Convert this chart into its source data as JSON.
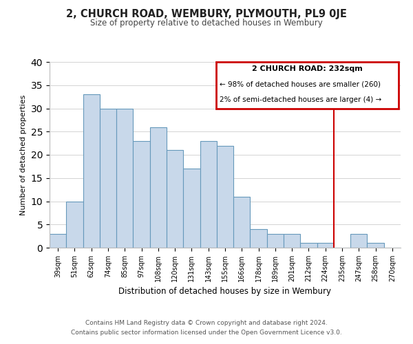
{
  "title": "2, CHURCH ROAD, WEMBURY, PLYMOUTH, PL9 0JE",
  "subtitle": "Size of property relative to detached houses in Wembury",
  "xlabel": "Distribution of detached houses by size in Wembury",
  "ylabel": "Number of detached properties",
  "footer_line1": "Contains HM Land Registry data © Crown copyright and database right 2024.",
  "footer_line2": "Contains public sector information licensed under the Open Government Licence v3.0.",
  "bar_labels": [
    "39sqm",
    "51sqm",
    "62sqm",
    "74sqm",
    "85sqm",
    "97sqm",
    "108sqm",
    "120sqm",
    "131sqm",
    "143sqm",
    "155sqm",
    "166sqm",
    "178sqm",
    "189sqm",
    "201sqm",
    "212sqm",
    "224sqm",
    "235sqm",
    "247sqm",
    "258sqm",
    "270sqm"
  ],
  "bar_values": [
    3,
    10,
    33,
    30,
    30,
    23,
    26,
    21,
    17,
    23,
    22,
    11,
    4,
    3,
    3,
    1,
    1,
    0,
    3,
    1,
    0
  ],
  "bar_color": "#c8d8ea",
  "bar_edge_color": "#6699bb",
  "annotation_title": "2 CHURCH ROAD: 232sqm",
  "annotation_line1": "← 98% of detached houses are smaller (260)",
  "annotation_line2": "2% of semi-detached houses are larger (4) →",
  "vline_color": "#cc0000",
  "ylim": [
    0,
    40
  ],
  "yticks": [
    0,
    5,
    10,
    15,
    20,
    25,
    30,
    35,
    40
  ],
  "background_color": "#ffffff",
  "grid_color": "#cccccc"
}
